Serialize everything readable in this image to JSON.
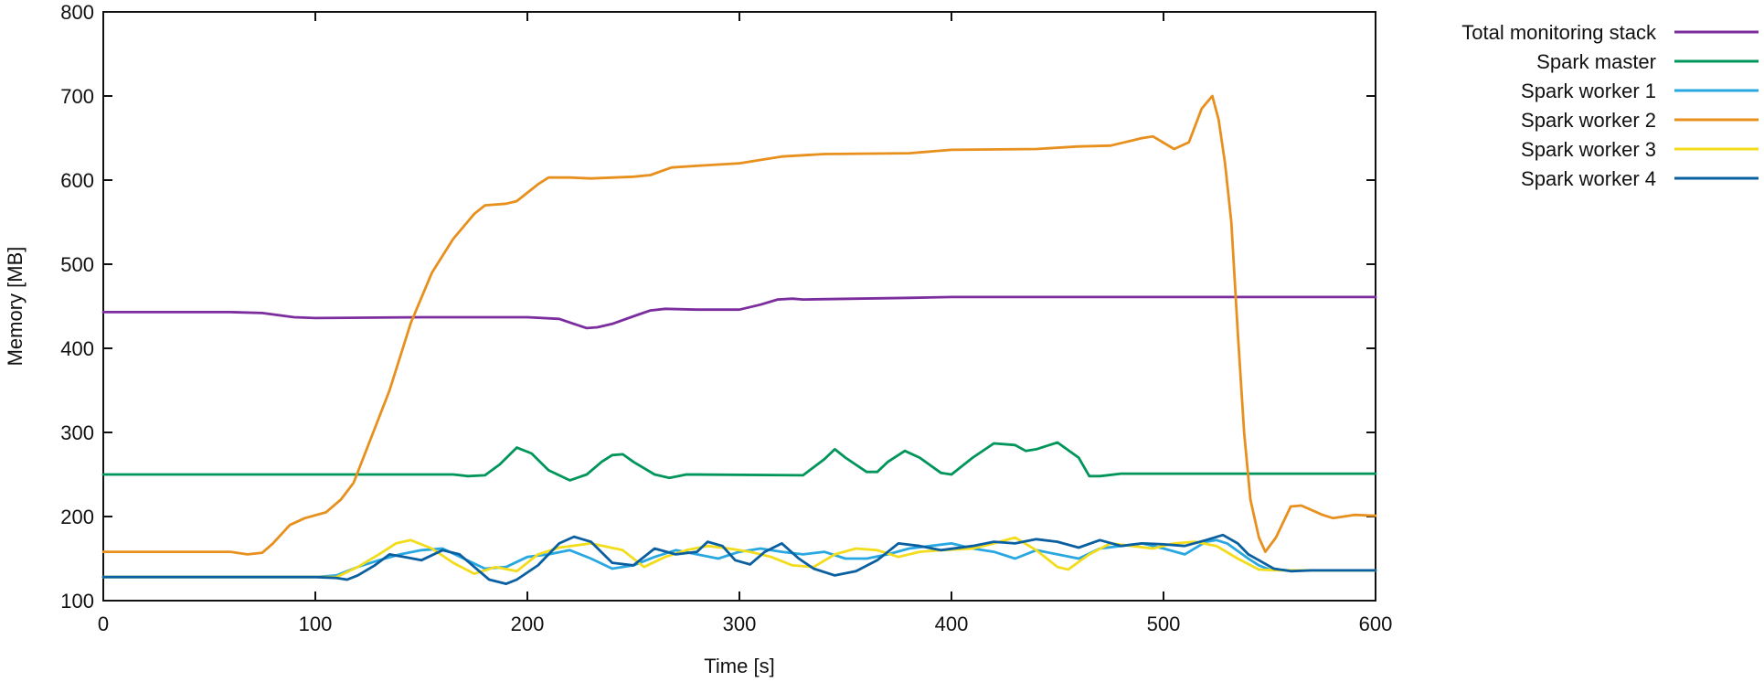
{
  "chart_data": {
    "type": "line",
    "title": "",
    "xlabel": "Time [s]",
    "ylabel": "Memory [MB]",
    "xlim": [
      0,
      600
    ],
    "ylim": [
      100,
      800
    ],
    "xticks": [
      0,
      100,
      200,
      300,
      400,
      500,
      600
    ],
    "yticks": [
      100,
      200,
      300,
      400,
      500,
      600,
      700,
      800
    ],
    "grid": false,
    "legend_position": "outside-right-top",
    "series": [
      {
        "name": "Total monitoring stack",
        "color": "#7b2d9e",
        "points": [
          [
            0,
            443
          ],
          [
            60,
            443
          ],
          [
            75,
            442
          ],
          [
            90,
            437
          ],
          [
            100,
            436
          ],
          [
            150,
            437
          ],
          [
            200,
            437
          ],
          [
            215,
            435
          ],
          [
            222,
            429
          ],
          [
            228,
            424
          ],
          [
            233,
            425
          ],
          [
            240,
            429
          ],
          [
            250,
            438
          ],
          [
            258,
            445
          ],
          [
            265,
            447
          ],
          [
            280,
            446
          ],
          [
            300,
            446
          ],
          [
            310,
            452
          ],
          [
            318,
            458
          ],
          [
            325,
            459
          ],
          [
            330,
            458
          ],
          [
            380,
            460
          ],
          [
            400,
            461
          ],
          [
            500,
            461
          ],
          [
            600,
            461
          ]
        ]
      },
      {
        "name": "Spark master",
        "color": "#00955a",
        "points": [
          [
            0,
            250
          ],
          [
            150,
            250
          ],
          [
            165,
            250
          ],
          [
            172,
            248
          ],
          [
            180,
            249
          ],
          [
            187,
            262
          ],
          [
            195,
            282
          ],
          [
            202,
            275
          ],
          [
            210,
            255
          ],
          [
            220,
            243
          ],
          [
            228,
            250
          ],
          [
            235,
            265
          ],
          [
            240,
            273
          ],
          [
            245,
            274
          ],
          [
            250,
            265
          ],
          [
            260,
            250
          ],
          [
            267,
            246
          ],
          [
            275,
            250
          ],
          [
            330,
            249
          ],
          [
            340,
            268
          ],
          [
            345,
            280
          ],
          [
            350,
            270
          ],
          [
            360,
            253
          ],
          [
            365,
            253
          ],
          [
            370,
            265
          ],
          [
            378,
            278
          ],
          [
            385,
            270
          ],
          [
            395,
            252
          ],
          [
            400,
            250
          ],
          [
            410,
            270
          ],
          [
            420,
            287
          ],
          [
            430,
            285
          ],
          [
            435,
            278
          ],
          [
            440,
            280
          ],
          [
            450,
            288
          ],
          [
            460,
            270
          ],
          [
            465,
            248
          ],
          [
            470,
            248
          ],
          [
            480,
            251
          ],
          [
            600,
            251
          ]
        ]
      },
      {
        "name": "Spark worker 1",
        "color": "#29a7e0",
        "points": [
          [
            0,
            128
          ],
          [
            100,
            128
          ],
          [
            110,
            130
          ],
          [
            120,
            140
          ],
          [
            130,
            148
          ],
          [
            140,
            155
          ],
          [
            150,
            160
          ],
          [
            160,
            162
          ],
          [
            170,
            150
          ],
          [
            180,
            138
          ],
          [
            190,
            140
          ],
          [
            200,
            152
          ],
          [
            210,
            155
          ],
          [
            220,
            160
          ],
          [
            230,
            150
          ],
          [
            240,
            138
          ],
          [
            250,
            142
          ],
          [
            260,
            152
          ],
          [
            270,
            160
          ],
          [
            280,
            155
          ],
          [
            290,
            150
          ],
          [
            300,
            158
          ],
          [
            310,
            162
          ],
          [
            320,
            158
          ],
          [
            330,
            155
          ],
          [
            340,
            158
          ],
          [
            350,
            150
          ],
          [
            360,
            150
          ],
          [
            370,
            155
          ],
          [
            380,
            162
          ],
          [
            390,
            165
          ],
          [
            400,
            168
          ],
          [
            410,
            162
          ],
          [
            420,
            158
          ],
          [
            430,
            150
          ],
          [
            440,
            160
          ],
          [
            450,
            155
          ],
          [
            460,
            150
          ],
          [
            470,
            162
          ],
          [
            480,
            165
          ],
          [
            490,
            168
          ],
          [
            500,
            162
          ],
          [
            510,
            155
          ],
          [
            520,
            170
          ],
          [
            525,
            172
          ],
          [
            530,
            168
          ],
          [
            540,
            150
          ],
          [
            545,
            142
          ],
          [
            550,
            137
          ],
          [
            560,
            136
          ],
          [
            570,
            136
          ],
          [
            600,
            136
          ]
        ]
      },
      {
        "name": "Spark worker 2",
        "color": "#e8901e",
        "points": [
          [
            0,
            158
          ],
          [
            20,
            158
          ],
          [
            40,
            158
          ],
          [
            60,
            158
          ],
          [
            68,
            155
          ],
          [
            75,
            157
          ],
          [
            80,
            168
          ],
          [
            88,
            190
          ],
          [
            95,
            198
          ],
          [
            105,
            205
          ],
          [
            112,
            220
          ],
          [
            118,
            240
          ],
          [
            125,
            285
          ],
          [
            135,
            350
          ],
          [
            145,
            430
          ],
          [
            155,
            490
          ],
          [
            165,
            530
          ],
          [
            175,
            560
          ],
          [
            180,
            570
          ],
          [
            190,
            572
          ],
          [
            195,
            575
          ],
          [
            205,
            595
          ],
          [
            210,
            603
          ],
          [
            220,
            603
          ],
          [
            230,
            602
          ],
          [
            250,
            604
          ],
          [
            258,
            606
          ],
          [
            268,
            615
          ],
          [
            280,
            617
          ],
          [
            300,
            620
          ],
          [
            320,
            628
          ],
          [
            340,
            631
          ],
          [
            380,
            632
          ],
          [
            400,
            636
          ],
          [
            440,
            637
          ],
          [
            460,
            640
          ],
          [
            475,
            641
          ],
          [
            490,
            650
          ],
          [
            495,
            652
          ],
          [
            505,
            637
          ],
          [
            512,
            645
          ],
          [
            518,
            685
          ],
          [
            523,
            700
          ],
          [
            526,
            672
          ],
          [
            529,
            620
          ],
          [
            532,
            550
          ],
          [
            535,
            420
          ],
          [
            538,
            300
          ],
          [
            541,
            220
          ],
          [
            545,
            175
          ],
          [
            548,
            158
          ],
          [
            553,
            175
          ],
          [
            560,
            212
          ],
          [
            565,
            213
          ],
          [
            575,
            202
          ],
          [
            580,
            198
          ],
          [
            590,
            202
          ],
          [
            600,
            201
          ]
        ]
      },
      {
        "name": "Spark worker 3",
        "color": "#f2dc1c",
        "points": [
          [
            0,
            128
          ],
          [
            100,
            128
          ],
          [
            110,
            128
          ],
          [
            120,
            140
          ],
          [
            130,
            155
          ],
          [
            138,
            168
          ],
          [
            145,
            172
          ],
          [
            155,
            162
          ],
          [
            165,
            145
          ],
          [
            175,
            132
          ],
          [
            185,
            140
          ],
          [
            195,
            135
          ],
          [
            205,
            155
          ],
          [
            215,
            163
          ],
          [
            230,
            168
          ],
          [
            245,
            160
          ],
          [
            255,
            140
          ],
          [
            265,
            152
          ],
          [
            275,
            160
          ],
          [
            285,
            165
          ],
          [
            295,
            162
          ],
          [
            305,
            158
          ],
          [
            315,
            152
          ],
          [
            325,
            142
          ],
          [
            335,
            140
          ],
          [
            345,
            155
          ],
          [
            355,
            162
          ],
          [
            365,
            160
          ],
          [
            375,
            152
          ],
          [
            385,
            158
          ],
          [
            395,
            160
          ],
          [
            410,
            162
          ],
          [
            420,
            168
          ],
          [
            430,
            175
          ],
          [
            440,
            160
          ],
          [
            450,
            140
          ],
          [
            455,
            137
          ],
          [
            465,
            155
          ],
          [
            475,
            168
          ],
          [
            485,
            165
          ],
          [
            495,
            162
          ],
          [
            505,
            168
          ],
          [
            515,
            170
          ],
          [
            525,
            165
          ],
          [
            535,
            150
          ],
          [
            545,
            137
          ],
          [
            555,
            136
          ],
          [
            570,
            136
          ],
          [
            600,
            136
          ]
        ]
      },
      {
        "name": "Spark worker 4",
        "color": "#0a5fa0",
        "points": [
          [
            0,
            128
          ],
          [
            100,
            128
          ],
          [
            110,
            127
          ],
          [
            115,
            125
          ],
          [
            120,
            130
          ],
          [
            128,
            142
          ],
          [
            135,
            155
          ],
          [
            142,
            152
          ],
          [
            150,
            148
          ],
          [
            160,
            160
          ],
          [
            168,
            155
          ],
          [
            175,
            140
          ],
          [
            182,
            125
          ],
          [
            190,
            120
          ],
          [
            195,
            125
          ],
          [
            205,
            142
          ],
          [
            215,
            168
          ],
          [
            222,
            176
          ],
          [
            230,
            170
          ],
          [
            240,
            145
          ],
          [
            250,
            142
          ],
          [
            260,
            162
          ],
          [
            270,
            155
          ],
          [
            280,
            158
          ],
          [
            285,
            170
          ],
          [
            292,
            165
          ],
          [
            298,
            148
          ],
          [
            305,
            143
          ],
          [
            312,
            158
          ],
          [
            320,
            168
          ],
          [
            328,
            150
          ],
          [
            335,
            138
          ],
          [
            345,
            130
          ],
          [
            355,
            135
          ],
          [
            365,
            148
          ],
          [
            375,
            168
          ],
          [
            385,
            165
          ],
          [
            395,
            160
          ],
          [
            410,
            165
          ],
          [
            420,
            170
          ],
          [
            430,
            168
          ],
          [
            440,
            173
          ],
          [
            450,
            170
          ],
          [
            460,
            163
          ],
          [
            470,
            172
          ],
          [
            480,
            165
          ],
          [
            490,
            168
          ],
          [
            500,
            167
          ],
          [
            510,
            165
          ],
          [
            520,
            172
          ],
          [
            528,
            178
          ],
          [
            535,
            168
          ],
          [
            540,
            155
          ],
          [
            545,
            148
          ],
          [
            552,
            138
          ],
          [
            560,
            135
          ],
          [
            570,
            136
          ],
          [
            600,
            136
          ]
        ]
      }
    ]
  }
}
